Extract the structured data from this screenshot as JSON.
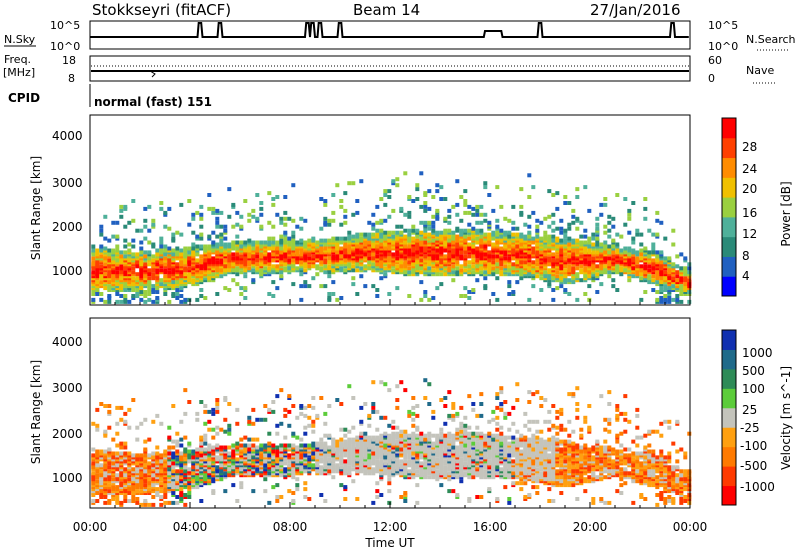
{
  "header": {
    "station": "Stokkseyri (fitACF)",
    "beam": "Beam 14",
    "date": "27/Jan/2016"
  },
  "noise_panel": {
    "left_label": "N.Sky",
    "right_label": "N.Search",
    "left_ticks": [
      "10^5",
      "10^0"
    ],
    "right_ticks": [
      "10^5",
      "10^0"
    ]
  },
  "freq_panel": {
    "left_label_line1": "Freq.",
    "left_label_line2": "[MHz]",
    "left_ticks": [
      "18",
      "8"
    ],
    "right_label": "Nave",
    "right_ticks": [
      "60",
      "0"
    ]
  },
  "cpid_panel": {
    "label": "CPID",
    "value": "normal (fast) 151"
  },
  "x_axis": {
    "title": "Time UT",
    "ticks": [
      "00:00",
      "04:00",
      "08:00",
      "12:00",
      "16:00",
      "20:00",
      "00:00"
    ]
  },
  "power_panel": {
    "ylabel": "Slant Range [km]",
    "yticks": [
      "1000",
      "2000",
      "3000",
      "4000"
    ],
    "colorbar_label": "Power [dB]",
    "colorbar_ticks": [
      "4",
      "8",
      "12",
      "16",
      "20",
      "24",
      "28"
    ],
    "colors": [
      "#0000ff",
      "#2060c0",
      "#2a8a78",
      "#4fb09a",
      "#9ad040",
      "#f0c000",
      "#ff8c00",
      "#ff4000",
      "#ff0000"
    ]
  },
  "velocity_panel": {
    "ylabel": "Slant Range [km]",
    "yticks": [
      "1000",
      "2000",
      "3000",
      "4000"
    ],
    "colorbar_label": "Velocity [m s^-1]",
    "colorbar_ticks": [
      "1000",
      "500",
      "100",
      "25",
      "-25",
      "-100",
      "-500",
      "-1000"
    ],
    "colors": [
      "#1030b0",
      "#1f6a8a",
      "#2e8b57",
      "#5ccc3a",
      "#c4c4bc",
      "#ffa010",
      "#ff7a00",
      "#ff3a00",
      "#ff0000"
    ],
    "ground_scatter_color": "#c8c8c0"
  },
  "chart_data": {
    "type": "heatmap",
    "x_range_hours": [
      0,
      24
    ],
    "y_range_km": [
      180,
      4500
    ],
    "noise_sky_spikes_ut_hours": [
      4.4,
      5.2,
      8.7,
      8.9,
      9.2,
      10.0,
      16.1,
      16.3,
      18.0,
      23.3
    ],
    "scatter_band_km": [
      {
        "t": 0,
        "lo": 500,
        "hi": 1500
      },
      {
        "t": 2,
        "lo": 500,
        "hi": 1400
      },
      {
        "t": 4,
        "lo": 600,
        "hi": 1500
      },
      {
        "t": 5.5,
        "lo": 900,
        "hi": 1600
      },
      {
        "t": 7,
        "lo": 900,
        "hi": 1600
      },
      {
        "t": 9,
        "lo": 950,
        "hi": 1650
      },
      {
        "t": 11,
        "lo": 950,
        "hi": 1800
      },
      {
        "t": 13,
        "lo": 850,
        "hi": 1900
      },
      {
        "t": 15,
        "lo": 850,
        "hi": 1900
      },
      {
        "t": 17,
        "lo": 850,
        "hi": 1800
      },
      {
        "t": 19,
        "lo": 650,
        "hi": 1700
      },
      {
        "t": 21,
        "lo": 900,
        "hi": 1500
      },
      {
        "t": 22.5,
        "lo": 650,
        "hi": 1400
      },
      {
        "t": 24,
        "lo": 400,
        "hi": 900
      }
    ]
  }
}
